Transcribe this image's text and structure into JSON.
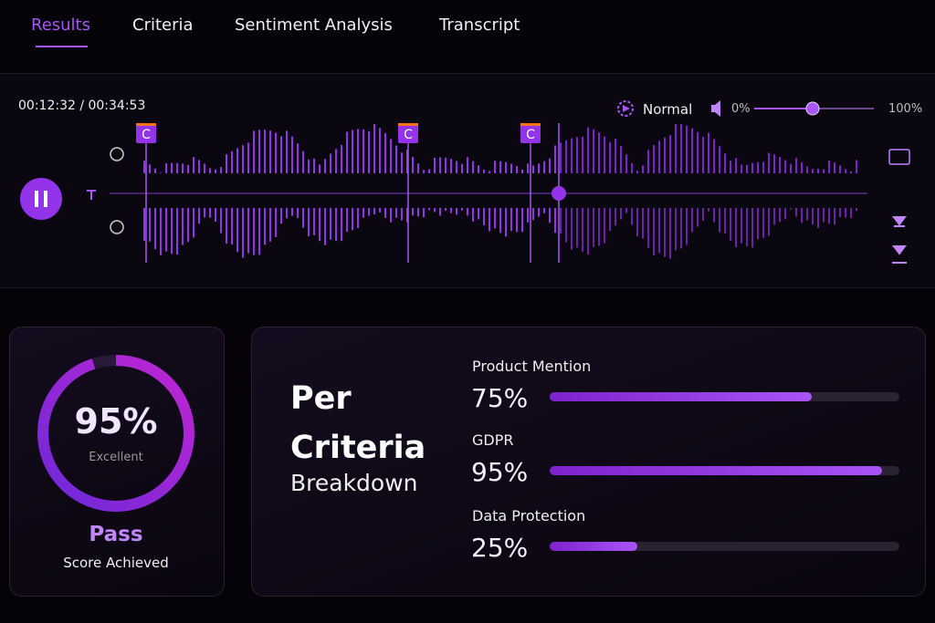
{
  "tabs": [
    "Results",
    "Criteria",
    "Sentiment Analysis",
    "Transcript"
  ],
  "player": {
    "time": "00:12:32 / 00:34:53",
    "speed": "Normal",
    "volume_min": "0%",
    "volume_max": "100%",
    "markers": [
      "C",
      "C",
      "C"
    ]
  },
  "score": {
    "value": 95,
    "label": "95%",
    "rating": "Excellent",
    "result": "Pass",
    "caption": "Score Achieved"
  },
  "breakdown": {
    "title": "Per Criteria",
    "subtitle": "Breakdown",
    "criteria": [
      {
        "name": "Product Mention",
        "value": 75,
        "label": "75%"
      },
      {
        "name": "GDPR",
        "value": 95,
        "label": "95%"
      },
      {
        "name": "Data Protection",
        "value": 25,
        "label": "25%"
      }
    ]
  }
}
